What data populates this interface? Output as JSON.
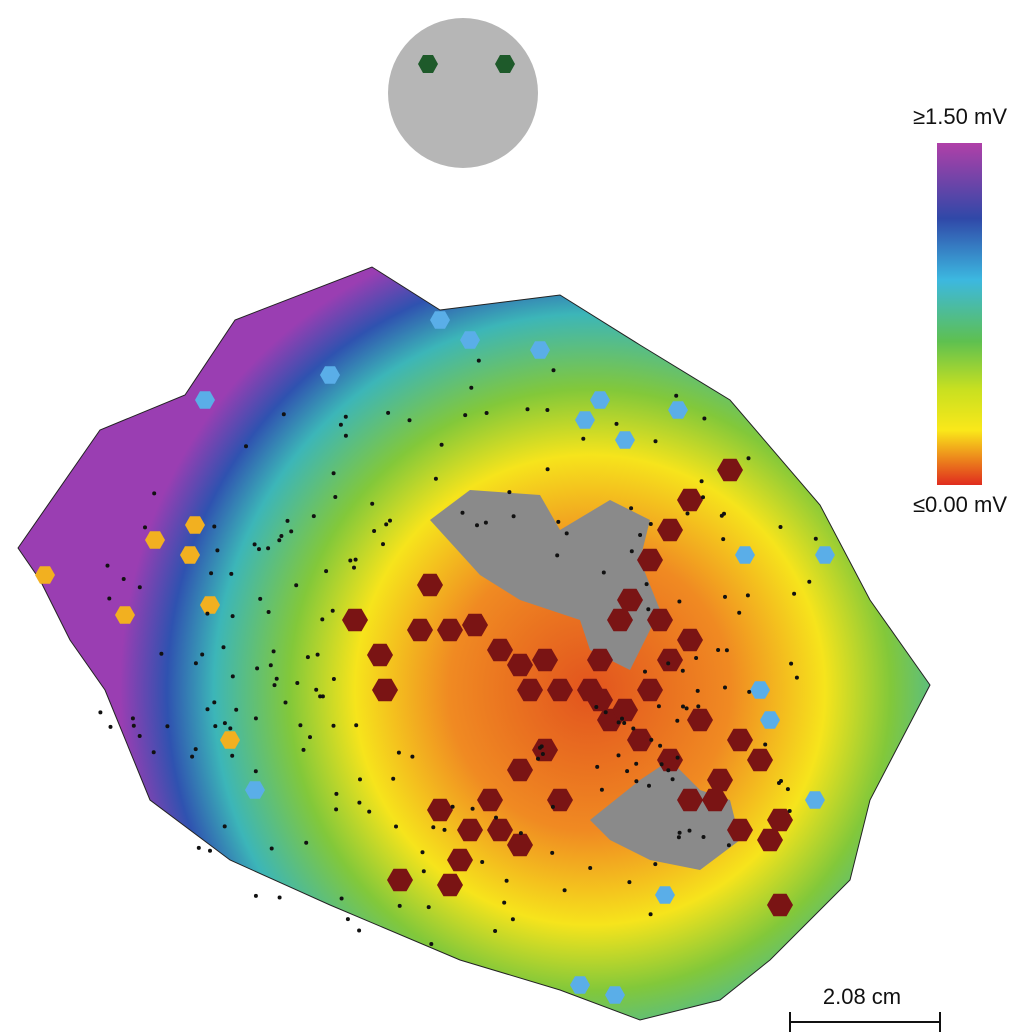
{
  "colorbar": {
    "max_label": "≥1.50 mV",
    "min_label": "≤0.00 mV"
  },
  "scale_bar": {
    "label": "2.08 cm"
  }
}
